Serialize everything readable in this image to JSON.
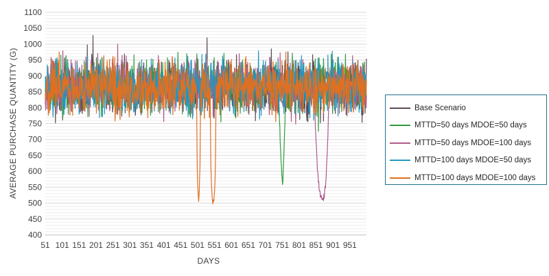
{
  "chart_data": {
    "type": "line",
    "title": "",
    "xlabel": "DAYS",
    "ylabel": "AVERAGE PURCHASE QUANTITY (G)",
    "xlim": [
      51,
      1000
    ],
    "ylim": [
      400,
      1100
    ],
    "yticks": [
      400,
      450,
      500,
      550,
      600,
      650,
      700,
      750,
      800,
      850,
      900,
      950,
      1000,
      1050,
      1100
    ],
    "xticks": [
      51,
      101,
      151,
      201,
      251,
      301,
      351,
      401,
      451,
      501,
      551,
      601,
      651,
      701,
      751,
      801,
      851,
      901,
      951
    ],
    "grid": true,
    "legend_position": "right",
    "noise": {
      "baseline": 865,
      "amplitude": 95,
      "note_free": true
    },
    "series": [
      {
        "name": "Base Scenario",
        "color": "#5b4a55",
        "seed": 11,
        "dips": []
      },
      {
        "name": "MTTD=50 days MDOE=50 days",
        "color": "#2e9a3e",
        "seed": 23,
        "dips": [
          {
            "x": [
              740,
              745,
              750,
              752,
              754,
              758,
              762
            ],
            "y": [
              860,
              700,
              580,
              553,
              600,
              720,
              860
            ]
          }
        ]
      },
      {
        "name": "MTTD=50 days MDOE=100 days",
        "color": "#b05a8a",
        "seed": 37,
        "dips": [
          {
            "x": [
              845,
              850,
              855,
              860,
              865,
              870,
              875,
              880,
              885,
              890
            ],
            "y": [
              860,
              720,
              610,
              550,
              520,
              512,
              520,
              560,
              680,
              860
            ]
          }
        ]
      },
      {
        "name": "MTTD=100 days MDOE=50 days",
        "color": "#2596be",
        "seed": 51,
        "dips": []
      },
      {
        "name": "MTTD=100 days MDOE=100 days",
        "color": "#e07020",
        "seed": 67,
        "dips": [
          {
            "x": [
              498,
              500,
              502,
              504,
              506,
              508,
              510
            ],
            "y": [
              860,
              600,
              540,
              510,
              545,
              610,
              860
            ]
          },
          {
            "x": [
              538,
              540,
              542,
              544,
              546,
              548,
              550,
              552,
              554,
              556
            ],
            "y": [
              860,
              620,
              560,
              525,
              505,
              500,
              515,
              560,
              640,
              860
            ]
          }
        ]
      }
    ]
  }
}
